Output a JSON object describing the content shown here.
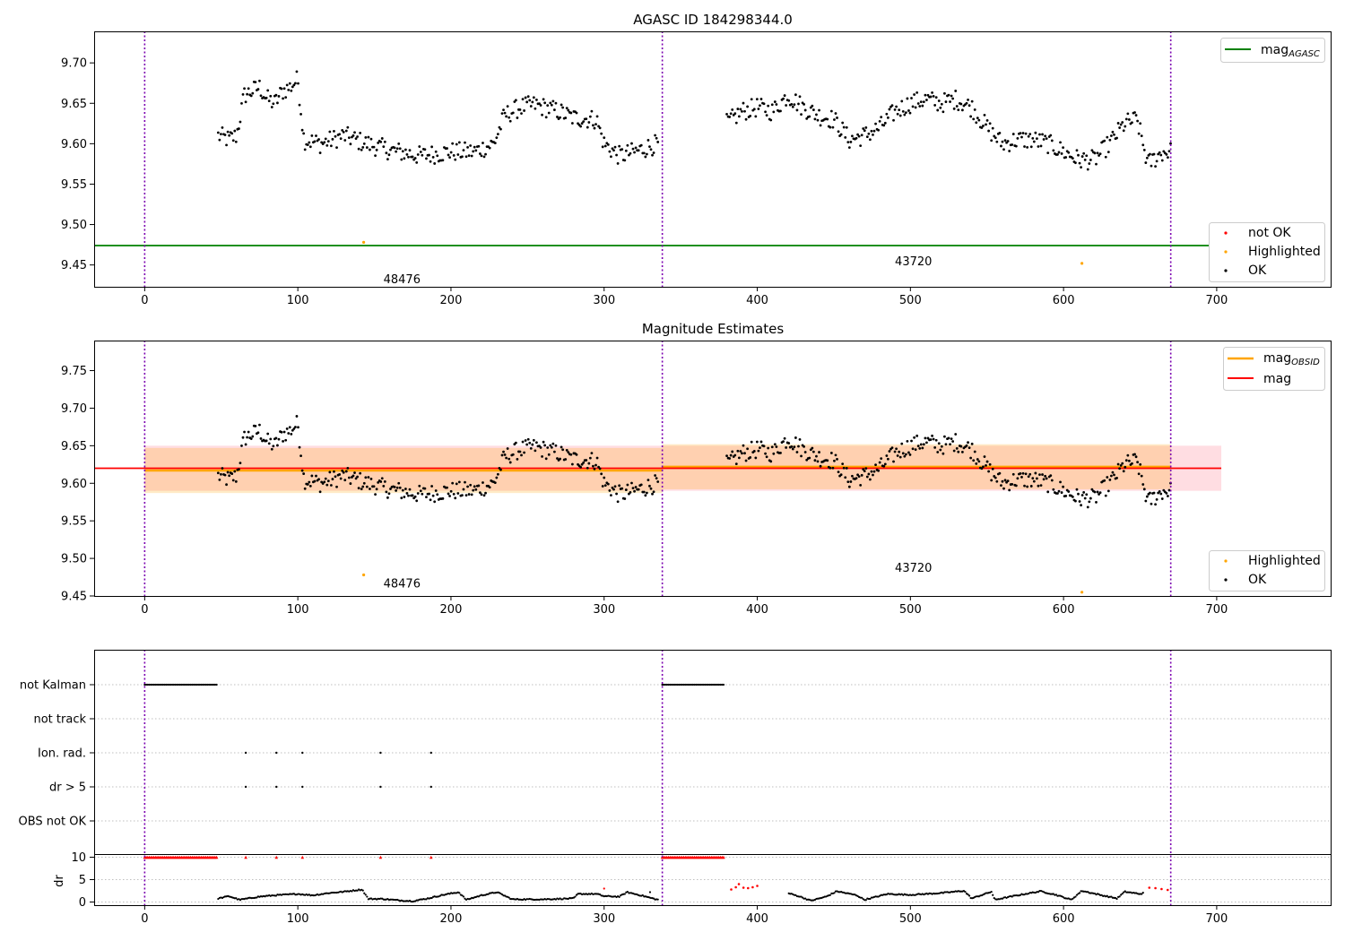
{
  "chart_data": [
    {
      "type": "scatter",
      "title": "AGASC ID 184298344.0",
      "xlim": [
        -33,
        775
      ],
      "ylim": [
        9.423,
        9.739
      ],
      "xticks": [
        0,
        100,
        200,
        300,
        400,
        500,
        600,
        700
      ],
      "yticks": [
        9.45,
        9.5,
        9.55,
        9.6,
        9.65,
        9.7
      ],
      "ytick_labels": [
        "9.45",
        "9.50",
        "9.55",
        "9.60",
        "9.65",
        "9.70"
      ],
      "obsid_boundaries": [
        0,
        338,
        670
      ],
      "obsid_labels": [
        {
          "label": "48476",
          "x": 168,
          "y": 9.432
        },
        {
          "label": "43720",
          "x": 502,
          "y": 9.454
        }
      ],
      "mag_agasc": 9.474,
      "highlighted_points": [
        {
          "x": 143,
          "y": 9.478
        },
        {
          "x": 612,
          "y": 9.452
        }
      ],
      "ok_trend": [
        [
          48,
          9.61
        ],
        [
          55,
          9.605
        ],
        [
          60,
          9.61
        ],
        [
          65,
          9.66
        ],
        [
          70,
          9.665
        ],
        [
          75,
          9.67
        ],
        [
          80,
          9.655
        ],
        [
          85,
          9.65
        ],
        [
          90,
          9.665
        ],
        [
          95,
          9.67
        ],
        [
          100,
          9.68
        ],
        [
          104,
          9.605
        ],
        [
          115,
          9.6
        ],
        [
          130,
          9.61
        ],
        [
          145,
          9.6
        ],
        [
          160,
          9.592
        ],
        [
          180,
          9.585
        ],
        [
          200,
          9.59
        ],
        [
          215,
          9.59
        ],
        [
          228,
          9.6
        ],
        [
          235,
          9.635
        ],
        [
          245,
          9.645
        ],
        [
          255,
          9.648
        ],
        [
          270,
          9.64
        ],
        [
          280,
          9.632
        ],
        [
          295,
          9.63
        ],
        [
          300,
          9.6
        ],
        [
          310,
          9.585
        ],
        [
          320,
          9.59
        ],
        [
          335,
          9.6
        ],
        [
          380,
          9.625
        ],
        [
          390,
          9.64
        ],
        [
          400,
          9.645
        ],
        [
          410,
          9.64
        ],
        [
          420,
          9.66
        ],
        [
          430,
          9.645
        ],
        [
          440,
          9.635
        ],
        [
          450,
          9.63
        ],
        [
          460,
          9.605
        ],
        [
          470,
          9.61
        ],
        [
          480,
          9.62
        ],
        [
          490,
          9.64
        ],
        [
          500,
          9.65
        ],
        [
          510,
          9.655
        ],
        [
          520,
          9.65
        ],
        [
          530,
          9.655
        ],
        [
          540,
          9.645
        ],
        [
          550,
          9.62
        ],
        [
          560,
          9.6
        ],
        [
          570,
          9.605
        ],
        [
          580,
          9.605
        ],
        [
          590,
          9.6
        ],
        [
          600,
          9.59
        ],
        [
          610,
          9.58
        ],
        [
          620,
          9.58
        ],
        [
          630,
          9.6
        ],
        [
          640,
          9.625
        ],
        [
          648,
          9.63
        ],
        [
          655,
          9.575
        ],
        [
          665,
          9.59
        ],
        [
          670,
          9.59
        ]
      ],
      "legend_lines": [
        {
          "label": "mag",
          "subscript": "AGASC",
          "color": "#008000"
        }
      ],
      "legend_points": [
        {
          "label": "not OK",
          "color": "#ff0000"
        },
        {
          "label": "Highlighted",
          "color": "#ffa500"
        },
        {
          "label": "OK",
          "color": "#000000"
        }
      ],
      "legend_placement": "top-right / bottom-right"
    },
    {
      "type": "scatter",
      "title": "Magnitude Estimates",
      "xlim": [
        -33,
        775
      ],
      "ylim": [
        9.45,
        9.79
      ],
      "xticks": [
        0,
        100,
        200,
        300,
        400,
        500,
        600,
        700
      ],
      "yticks": [
        9.45,
        9.5,
        9.55,
        9.6,
        9.65,
        9.7,
        9.75
      ],
      "ytick_labels": [
        "9.45",
        "9.50",
        "9.55",
        "9.60",
        "9.65",
        "9.70",
        "9.75"
      ],
      "obsid_boundaries": [
        0,
        338,
        670
      ],
      "obsid_labels": [
        {
          "label": "48476",
          "x": 168,
          "y": 9.466
        },
        {
          "label": "43720",
          "x": 502,
          "y": 9.487
        }
      ],
      "mag": 9.62,
      "mag_band": [
        9.59,
        9.65
      ],
      "mag_band_xrange": [
        0,
        703
      ],
      "mag_obsid": [
        {
          "x": [
            0,
            338
          ],
          "value": 9.617,
          "band": [
            9.587,
            9.647
          ]
        },
        {
          "x": [
            338,
            670
          ],
          "value": 9.622,
          "band": [
            9.592,
            9.652
          ]
        }
      ],
      "highlighted_points": [
        {
          "x": 143,
          "y": 9.478
        },
        {
          "x": 612,
          "y": 9.455
        }
      ],
      "legend_lines": [
        {
          "label": "mag",
          "subscript": "OBSID",
          "color": "#ffa500"
        },
        {
          "label": "mag",
          "subscript": "",
          "color": "#ff0000"
        }
      ],
      "legend_points": [
        {
          "label": "Highlighted",
          "color": "#ffa500"
        },
        {
          "label": "OK",
          "color": "#000000"
        }
      ],
      "legend_placement": "top-right / bottom-right"
    },
    {
      "type": "scatter",
      "title": "",
      "xlim": [
        -33,
        775
      ],
      "xticks": [
        0,
        100,
        200,
        300,
        400,
        500,
        600,
        700
      ],
      "flag_rows": [
        "not Kalman",
        "not track",
        "Ion. rad.",
        "dr > 5",
        "OBS not OK"
      ],
      "not_kalman_ranges": [
        [
          0,
          47
        ],
        [
          338,
          378
        ]
      ],
      "ion_rad_x": [
        66,
        86,
        103,
        154,
        187
      ],
      "dr_gt5_x": [
        66,
        86,
        103,
        154,
        187
      ],
      "dr_ylabel": "dr",
      "dr_yticks": [
        0,
        5,
        10
      ],
      "dr_ylim": [
        -0.5,
        10.5
      ],
      "dr_clip_ranges": [
        [
          0,
          47
        ],
        [
          338,
          378
        ]
      ],
      "dr_clip_x": [
        66,
        86,
        103,
        154,
        187
      ],
      "dr_trend": [
        [
          48,
          0.8
        ],
        [
          55,
          1.3
        ],
        [
          62,
          0.5
        ],
        [
          75,
          1.2
        ],
        [
          85,
          1.5
        ],
        [
          100,
          1.8
        ],
        [
          110,
          1.5
        ],
        [
          120,
          2
        ],
        [
          130,
          2.3
        ],
        [
          142,
          2.8
        ],
        [
          146,
          0.7
        ],
        [
          155,
          0.7
        ],
        [
          165,
          0.4
        ],
        [
          175,
          0.2
        ],
        [
          185,
          0.8
        ],
        [
          195,
          1.6
        ],
        [
          205,
          2.2
        ],
        [
          210,
          0.5
        ],
        [
          220,
          1.5
        ],
        [
          230,
          2.2
        ],
        [
          240,
          0.6
        ],
        [
          260,
          0.6
        ],
        [
          280,
          0.8
        ],
        [
          283,
          1.8
        ],
        [
          295,
          1.8
        ],
        [
          300,
          1.3
        ],
        [
          310,
          1.2
        ],
        [
          315,
          2.2
        ],
        [
          325,
          1.4
        ],
        [
          335,
          0.5
        ],
        [
          338,
          1.2
        ],
        [
          420,
          2
        ],
        [
          428,
          1.2
        ],
        [
          435,
          0.3
        ],
        [
          445,
          1.2
        ],
        [
          452,
          2.4
        ],
        [
          465,
          1.5
        ],
        [
          470,
          0.5
        ],
        [
          485,
          1.8
        ],
        [
          500,
          1.6
        ],
        [
          520,
          2
        ],
        [
          535,
          2.5
        ],
        [
          540,
          0.8
        ],
        [
          553,
          2.3
        ],
        [
          555,
          0.5
        ],
        [
          570,
          1.5
        ],
        [
          585,
          2.4
        ],
        [
          595,
          1.6
        ],
        [
          605,
          0.5
        ],
        [
          612,
          2.5
        ],
        [
          625,
          1.5
        ],
        [
          635,
          0.8
        ],
        [
          640,
          2.3
        ],
        [
          650,
          1.8
        ],
        [
          660,
          2.8
        ],
        [
          670,
          2.5
        ]
      ],
      "dr_red_points": [
        [
          383,
          2.8
        ],
        [
          386,
          3.3
        ],
        [
          388,
          4
        ],
        [
          391,
          3.2
        ],
        [
          394,
          3.1
        ],
        [
          397,
          3.3
        ],
        [
          400,
          3.6
        ],
        [
          656,
          3.2
        ],
        [
          660,
          3.1
        ],
        [
          664,
          2.9
        ],
        [
          668,
          2.7
        ]
      ],
      "dr_clip_value": 10,
      "dr_misc_points": [
        [
          300,
          3
        ],
        [
          330,
          2.2
        ]
      ]
    }
  ]
}
